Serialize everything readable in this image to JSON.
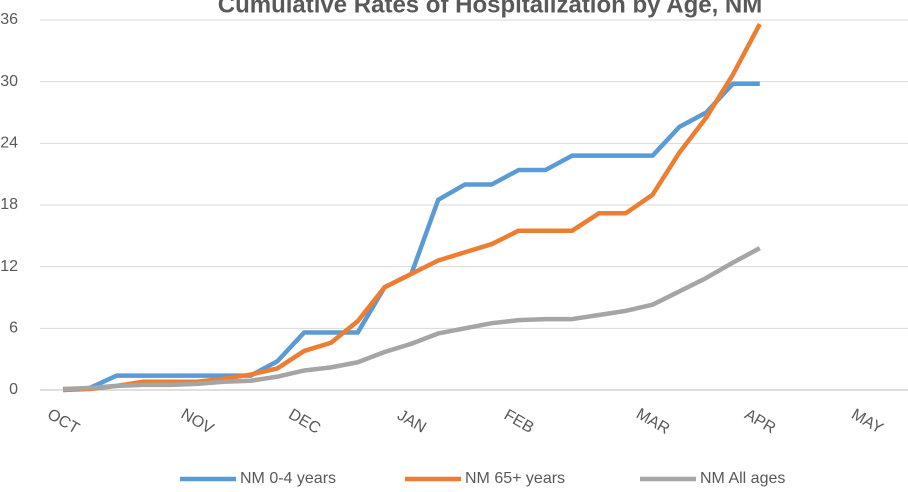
{
  "chart_data": {
    "type": "line",
    "title": "Cumulative Rates of Hospitalization by Age, NM",
    "categories": [
      "OCT",
      null,
      null,
      null,
      null,
      "NOV",
      null,
      null,
      null,
      "DEC",
      null,
      null,
      null,
      "JAN",
      null,
      null,
      null,
      "FEB",
      null,
      null,
      null,
      null,
      "MAR",
      null,
      null,
      null,
      "APR",
      null,
      null,
      null,
      "MAY"
    ],
    "series": [
      {
        "name": "NM 0-4 years",
        "color": "#5b9bd5",
        "values": [
          0,
          0.2,
          1.4,
          1.4,
          1.4,
          1.4,
          1.4,
          1.4,
          2.8,
          5.6,
          5.6,
          5.6,
          10,
          11.3,
          18.5,
          20,
          20,
          21.4,
          21.4,
          22.8,
          22.8,
          22.8,
          22.8,
          25.6,
          27,
          29.8,
          29.8,
          null,
          null,
          null,
          null
        ]
      },
      {
        "name": "NM 65+ years",
        "color": "#ed7d31",
        "values": [
          0,
          0.1,
          0.4,
          0.8,
          0.8,
          0.8,
          1.1,
          1.5,
          2.1,
          3.8,
          4.6,
          6.7,
          10,
          11.3,
          12.6,
          13.4,
          14.2,
          15.5,
          15.5,
          15.5,
          17.2,
          17.2,
          19,
          23.1,
          26.5,
          30.7,
          35.6,
          null,
          null,
          null,
          null
        ]
      },
      {
        "name": "NM All ages",
        "color": "#a5a5a5",
        "values": [
          0.1,
          0.2,
          0.4,
          0.5,
          0.5,
          0.6,
          0.8,
          0.9,
          1.3,
          1.9,
          2.2,
          2.7,
          3.7,
          4.5,
          5.5,
          6.0,
          6.5,
          6.8,
          6.9,
          6.9,
          7.3,
          7.7,
          8.3,
          9.6,
          10.9,
          12.4,
          13.8,
          null,
          null,
          null,
          null
        ]
      }
    ],
    "ylim": [
      0,
      36
    ],
    "yticks": [
      0,
      6,
      12,
      18,
      24,
      30,
      36
    ],
    "grid": true,
    "legend": "bottom"
  }
}
